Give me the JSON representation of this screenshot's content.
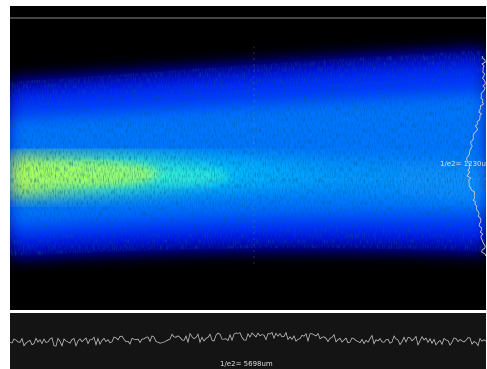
{
  "viewer": {
    "vertical_width_label": "1/e2= 1230um",
    "horizontal_width_label": "1/e2= 5698um",
    "colormap": [
      "#000000",
      "#00008c",
      "#0000ff",
      "#0050ff",
      "#00aaff",
      "#30ffd0",
      "#c8ff40"
    ],
    "profile_line_color": "#d0d0d0",
    "crosshair_color": "#9a9a9a"
  }
}
